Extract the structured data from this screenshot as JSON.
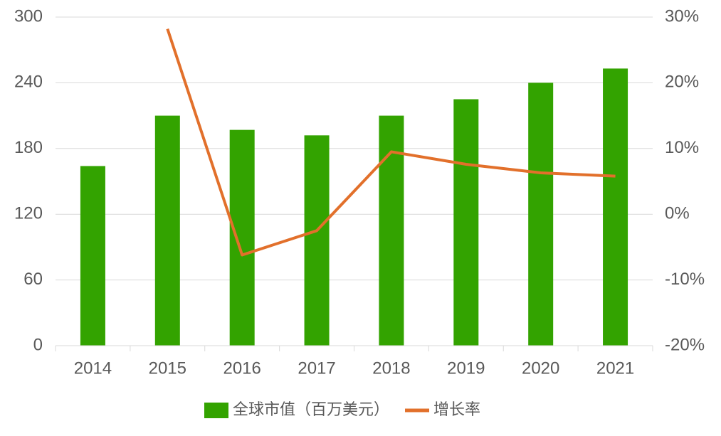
{
  "chart_data": {
    "type": "bar",
    "categories": [
      "2014",
      "2015",
      "2016",
      "2017",
      "2018",
      "2019",
      "2020",
      "2021"
    ],
    "series": [
      {
        "name": "全球市值（百万美元）",
        "color": "#33a300",
        "values": [
          164,
          210,
          197,
          192,
          210,
          225,
          240,
          253
        ]
      },
      {
        "name": "增长率",
        "color": "#e2702b",
        "type": "line",
        "axis": "y2",
        "values": [
          null,
          28.2,
          -6.2,
          -2.5,
          9.5,
          7.6,
          6.3,
          5.8
        ]
      }
    ],
    "ylim": [
      0,
      300
    ],
    "yticks": [
      0,
      60,
      120,
      180,
      240,
      300
    ],
    "y2lim": [
      -20,
      30
    ],
    "y2ticks": [
      {
        "value": -20,
        "label": "-20%"
      },
      {
        "value": -10,
        "label": "-10%"
      },
      {
        "value": 0,
        "label": "0%"
      },
      {
        "value": 10,
        "label": "10%"
      },
      {
        "value": 20,
        "label": "20%"
      },
      {
        "value": 30,
        "label": "30%"
      }
    ],
    "grid": true,
    "legend": "bottom"
  }
}
